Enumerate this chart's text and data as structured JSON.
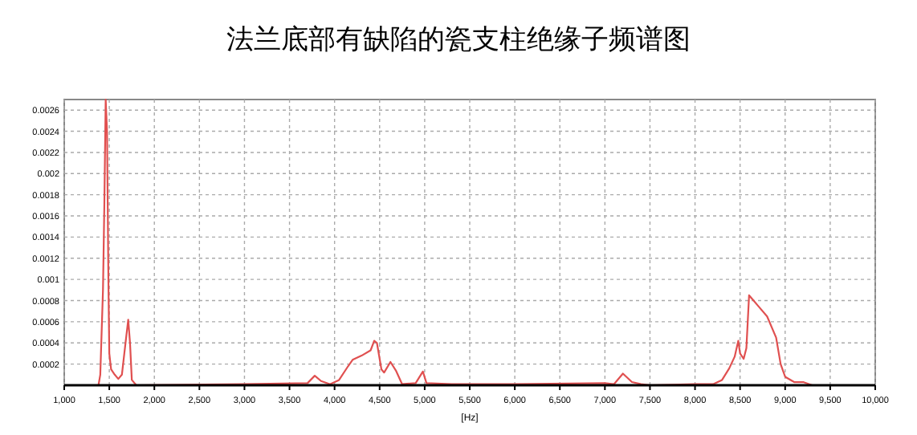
{
  "chart_data": {
    "type": "line",
    "title": "法兰底部有缺陷的瓷支柱绝缘子频谱图",
    "xlabel": "[Hz]",
    "xlim": [
      1000,
      10000
    ],
    "ylim": [
      0,
      0.0027
    ],
    "xticks": [
      {
        "value": 1000,
        "label": "1,000"
      },
      {
        "value": 1500,
        "label": "1,500"
      },
      {
        "value": 2000,
        "label": "2,000"
      },
      {
        "value": 2500,
        "label": "2,500"
      },
      {
        "value": 3000,
        "label": "3,000"
      },
      {
        "value": 3500,
        "label": "3,500"
      },
      {
        "value": 4000,
        "label": "4,000"
      },
      {
        "value": 4500,
        "label": "4,500"
      },
      {
        "value": 5000,
        "label": "5,000"
      },
      {
        "value": 5500,
        "label": "5,500"
      },
      {
        "value": 6000,
        "label": "6,000"
      },
      {
        "value": 6500,
        "label": "6,500"
      },
      {
        "value": 7000,
        "label": "7,000"
      },
      {
        "value": 7500,
        "label": "7,500"
      },
      {
        "value": 8000,
        "label": "8,000"
      },
      {
        "value": 8500,
        "label": "8,500"
      },
      {
        "value": 9000,
        "label": "9,000"
      },
      {
        "value": 9500,
        "label": "9,500"
      },
      {
        "value": 10000,
        "label": "10,000"
      }
    ],
    "yticks": [
      0.0002,
      0.0004,
      0.0006,
      0.0008,
      0.001,
      0.0012,
      0.0014,
      0.0016,
      0.0018,
      0.002,
      0.0022,
      0.0024,
      0.0026
    ],
    "grid": true,
    "line_style": "solid",
    "marker": "none",
    "series": [
      {
        "color": "#e05050",
        "x": [
          1000,
          1380,
          1400,
          1430,
          1445,
          1460,
          1475,
          1490,
          1500,
          1520,
          1560,
          1600,
          1640,
          1680,
          1710,
          1730,
          1750,
          1800,
          3000,
          3700,
          3780,
          3850,
          3950,
          4050,
          4150,
          4200,
          4300,
          4400,
          4440,
          4470,
          4520,
          4550,
          4620,
          4680,
          4750,
          4900,
          4980,
          5020,
          5300,
          6000,
          7000,
          7100,
          7200,
          7300,
          7400,
          7500,
          8000,
          8200,
          8300,
          8380,
          8440,
          8480,
          8500,
          8540,
          8570,
          8600,
          8650,
          8700,
          8800,
          8900,
          8950,
          9000,
          9100,
          9200,
          9300,
          10000
        ],
        "values": [
          0,
          0,
          0.0001,
          0.0009,
          0.0017,
          0.0027,
          0.0024,
          0.001,
          0.0003,
          0.00015,
          0.0001,
          6e-05,
          0.0001,
          0.0004,
          0.00062,
          0.0004,
          5e-05,
          0,
          1e-05,
          2e-05,
          9e-05,
          4e-05,
          1e-05,
          5e-05,
          0.00018,
          0.00024,
          0.00028,
          0.00033,
          0.00042,
          0.0004,
          0.00015,
          0.00012,
          0.00022,
          0.00014,
          1e-05,
          2e-05,
          0.00013,
          2e-05,
          1e-05,
          1e-05,
          2e-05,
          1e-05,
          0.00011,
          3e-05,
          1e-05,
          0,
          1e-05,
          1e-05,
          5e-05,
          0.00016,
          0.00027,
          0.00042,
          0.0003,
          0.00025,
          0.00035,
          0.00085,
          0.0008,
          0.00075,
          0.00065,
          0.00045,
          0.0002,
          8e-05,
          3e-05,
          3e-05,
          0,
          0
        ]
      }
    ]
  }
}
